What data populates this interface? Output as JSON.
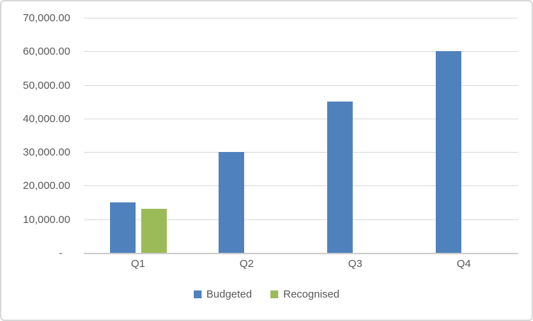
{
  "chart_data": {
    "type": "bar",
    "title": "",
    "xlabel": "",
    "ylabel": "",
    "categories": [
      "Q1",
      "Q2",
      "Q3",
      "Q4"
    ],
    "series": [
      {
        "name": "Budgeted",
        "color": "#4F81BD",
        "values": [
          15200,
          30250,
          45250,
          60250
        ]
      },
      {
        "name": "Recognised",
        "color": "#9BBB59",
        "values": [
          13300,
          0,
          0,
          0
        ]
      }
    ],
    "ylim": [
      0,
      70000
    ],
    "ytick_step": 10000,
    "yticks": [
      {
        "value": 0,
        "label": "-"
      },
      {
        "value": 10000,
        "label": "10,000.00"
      },
      {
        "value": 20000,
        "label": "20,000.00"
      },
      {
        "value": 30000,
        "label": "30,000.00"
      },
      {
        "value": 40000,
        "label": "40,000.00"
      },
      {
        "value": 50000,
        "label": "50,000.00"
      },
      {
        "value": 60000,
        "label": "60,000.00"
      },
      {
        "value": 70000,
        "label": "70,000.00"
      }
    ],
    "grid": true,
    "legend_position": "bottom"
  },
  "colors": {
    "background": "#FFFFFF",
    "border": "#D8D8D8",
    "gridline": "#D9D9D9",
    "axis": "#CCCCCC",
    "text": "#595959",
    "budgeted": "#4F81BD",
    "recognised": "#9BBB59"
  }
}
